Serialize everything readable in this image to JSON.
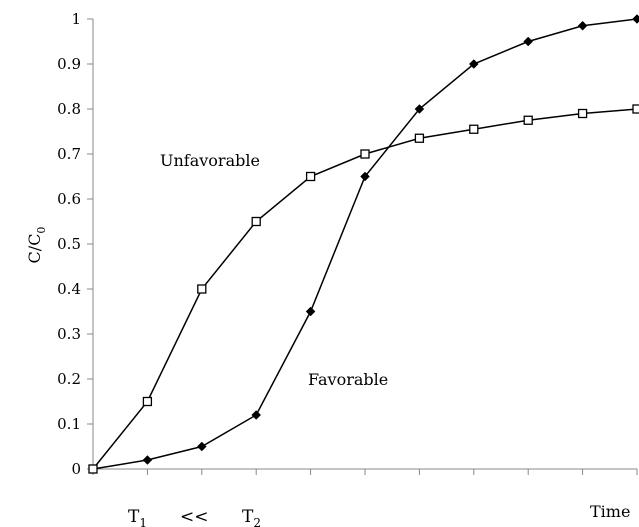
{
  "chart_data": {
    "type": "line",
    "title": "",
    "xlabel": "Time",
    "ylabel": "C/C0",
    "ylabel_main": "C/C",
    "ylabel_sub": "0",
    "ylim": [
      0,
      1
    ],
    "yticks": [
      "0",
      "0.1",
      "0.2",
      "0.3",
      "0.4",
      "0.5",
      "0.6",
      "0.7",
      "0.8",
      "0.9",
      "1"
    ],
    "x": [
      0,
      1,
      2,
      3,
      4,
      5,
      6,
      7,
      8,
      9,
      10
    ],
    "grid": false,
    "legend": "none",
    "series": [
      {
        "name": "Favorable",
        "marker": "filled-diamond",
        "values": [
          0,
          0.02,
          0.05,
          0.12,
          0.35,
          0.65,
          0.8,
          0.9,
          0.95,
          0.985,
          1.0
        ]
      },
      {
        "name": "Unfavorable",
        "marker": "open-square",
        "values": [
          0,
          0.15,
          0.4,
          0.55,
          0.65,
          0.7,
          0.735,
          0.755,
          0.775,
          0.79,
          0.8
        ]
      }
    ],
    "annotations": {
      "t1_main": "T",
      "t1_sub": "1",
      "relation": "<<",
      "t2_main": "T",
      "t2_sub": "2"
    }
  }
}
